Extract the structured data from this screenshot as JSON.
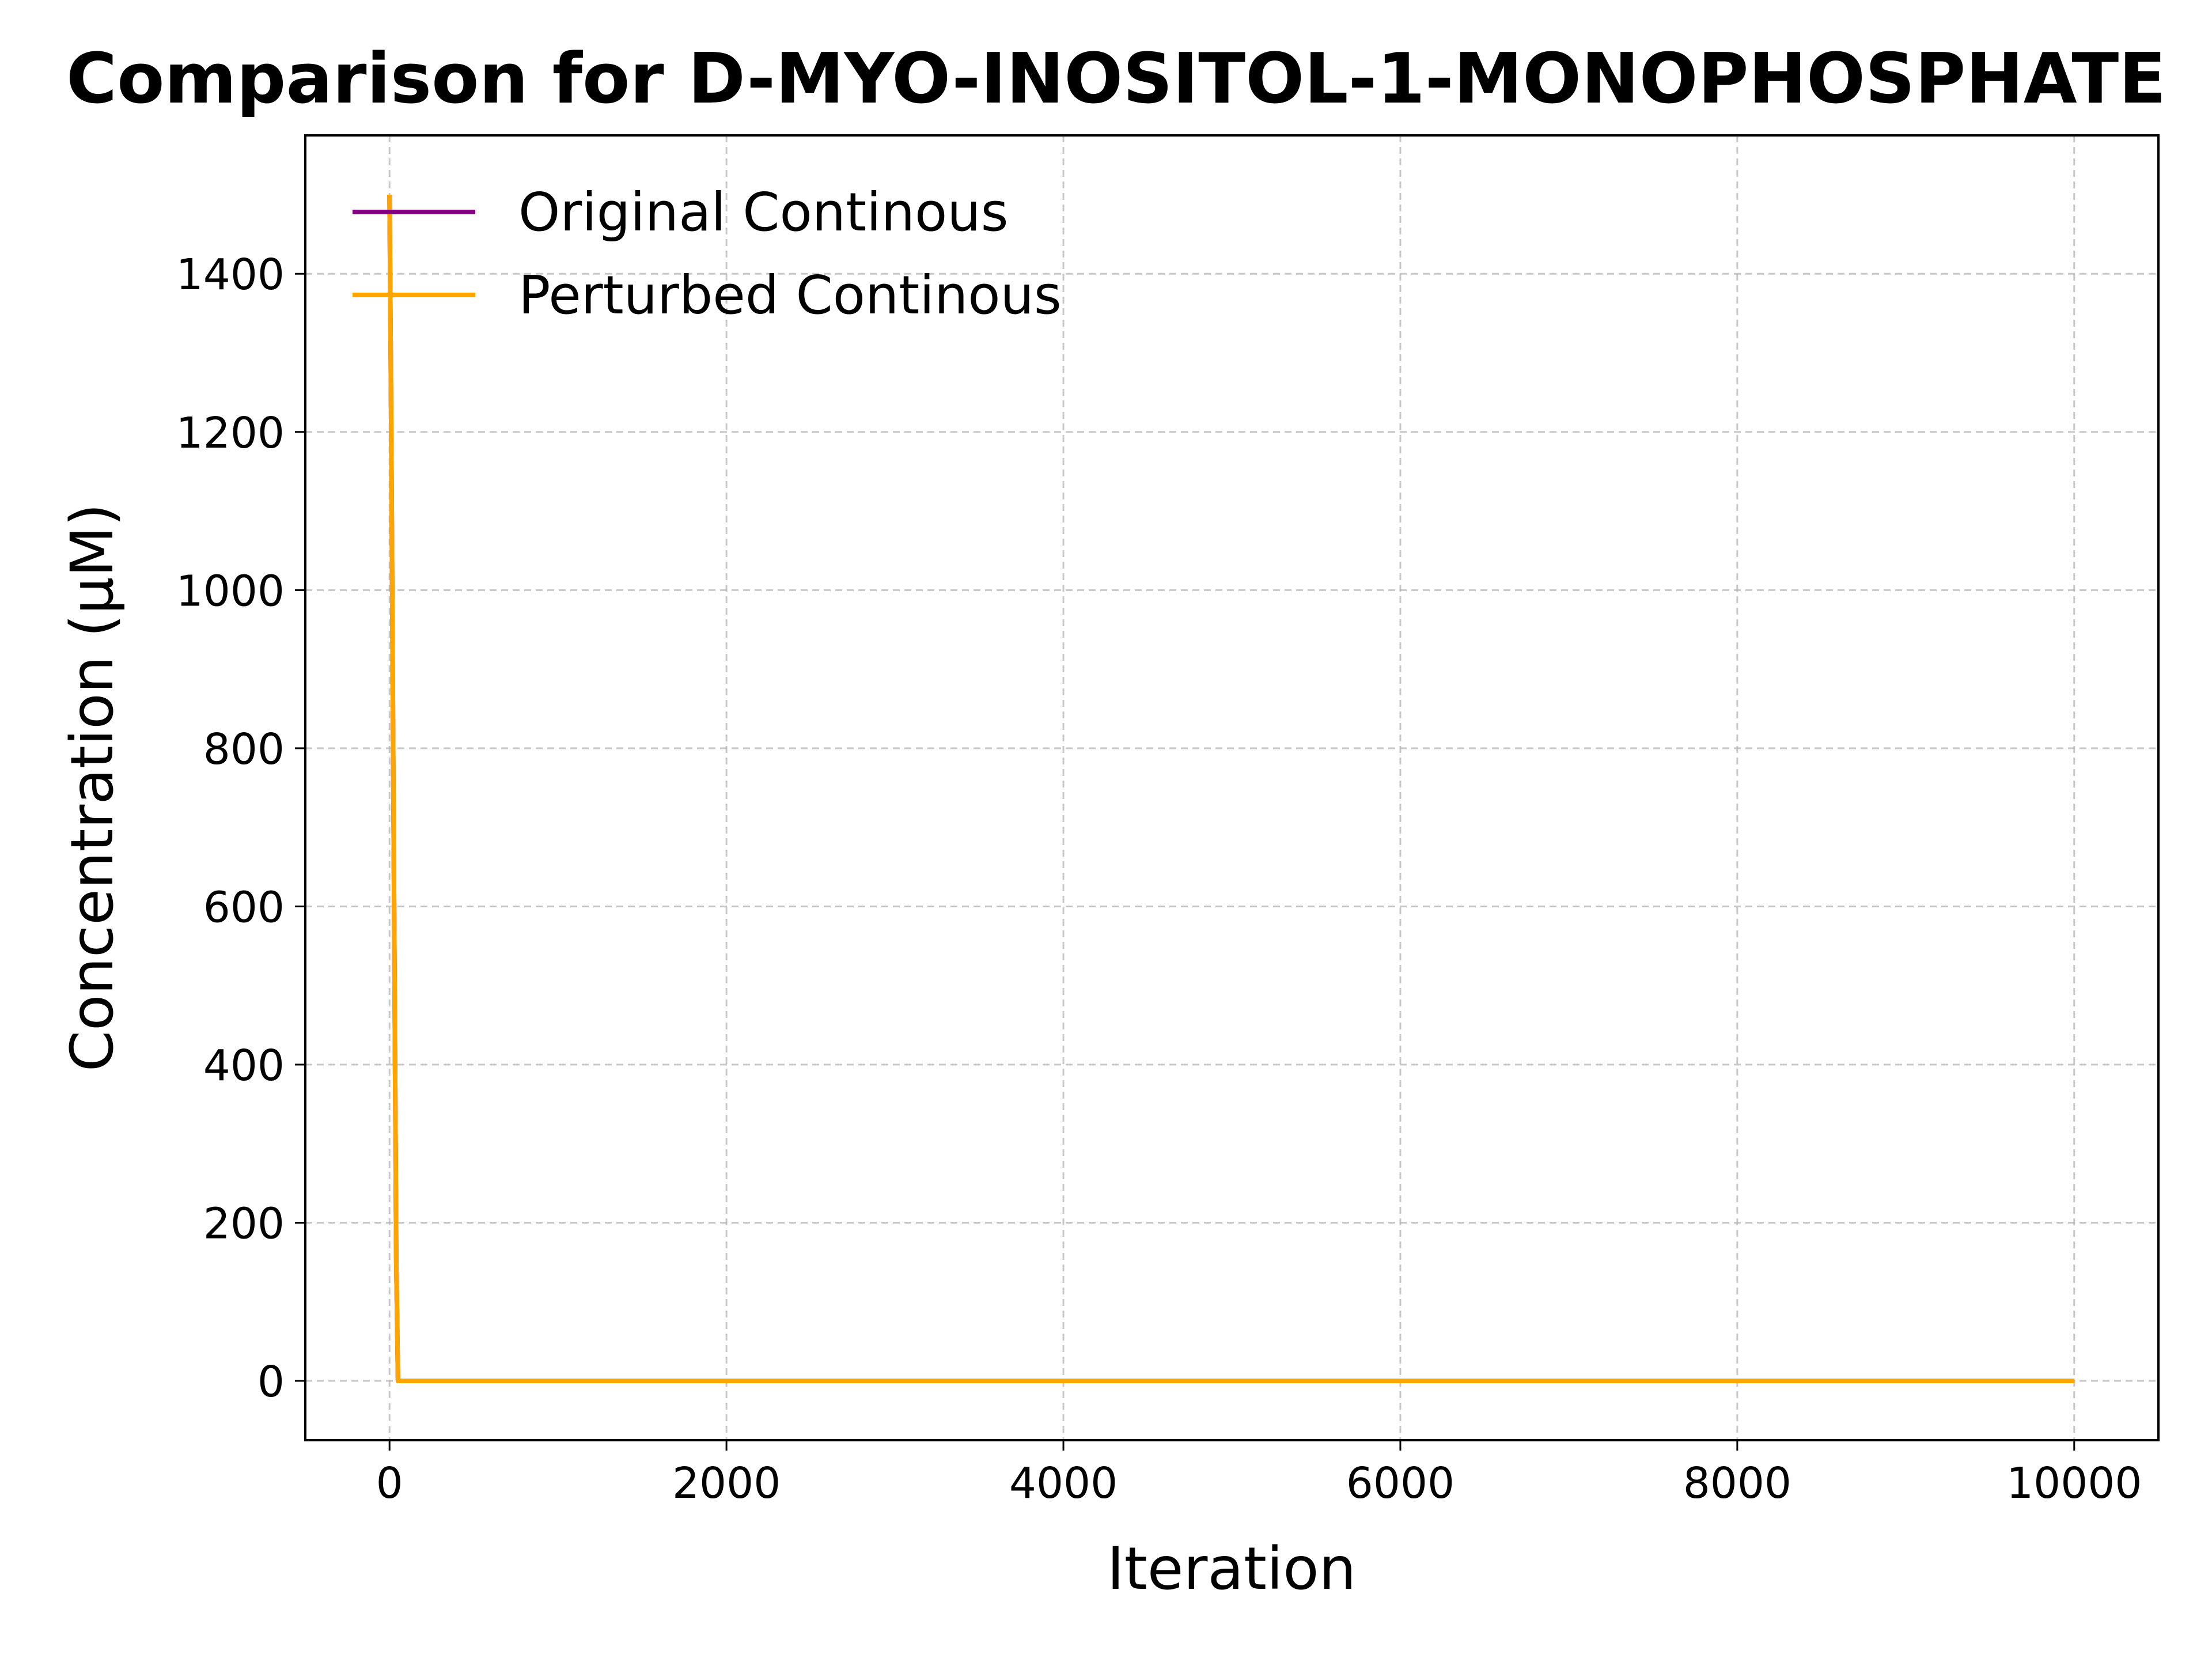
{
  "chart_data": {
    "type": "line",
    "title": "Comparison for D-MYO-INOSITOL-1-MONOPHOSPHATE",
    "xlabel": "Iteration",
    "ylabel": "Concentration (μM)",
    "xlim": [
      -500,
      10500
    ],
    "ylim": [
      -75,
      1575
    ],
    "x_ticks": [
      0,
      2000,
      4000,
      6000,
      8000,
      10000
    ],
    "y_ticks": [
      0,
      200,
      400,
      600,
      800,
      1000,
      1200,
      1400
    ],
    "grid": true,
    "legend_position": "top-left",
    "series": [
      {
        "name": "Original Continous",
        "color": "#800080",
        "x": [
          0,
          10,
          20,
          30,
          40,
          50,
          100,
          1000,
          5000,
          10000
        ],
        "y": [
          1500,
          1200,
          850,
          500,
          150,
          0,
          0,
          0,
          0,
          0
        ]
      },
      {
        "name": "Perturbed Continous",
        "color": "#FFA500",
        "x": [
          0,
          10,
          20,
          30,
          40,
          50,
          100,
          1000,
          5000,
          10000
        ],
        "y": [
          1500,
          1200,
          850,
          500,
          150,
          0,
          0,
          0,
          0,
          0
        ]
      }
    ]
  }
}
